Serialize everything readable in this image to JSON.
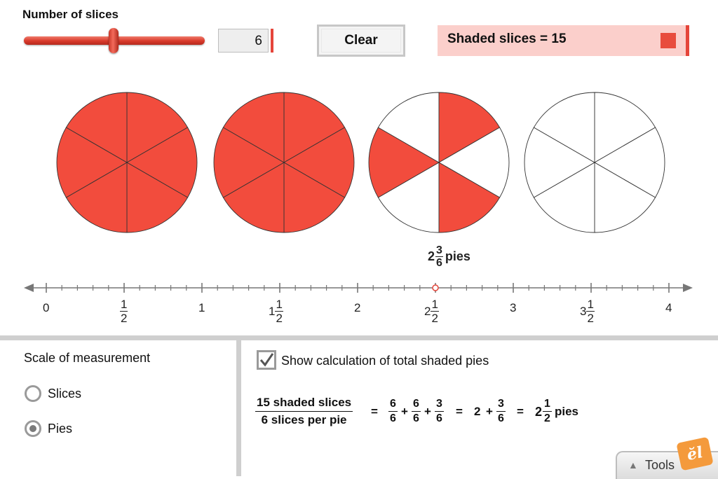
{
  "slider": {
    "label": "Number of slices",
    "value": "6",
    "min": 1,
    "max": 12,
    "current": 6
  },
  "clear_button": "Clear",
  "shaded_display": {
    "text": "Shaded slices = 15",
    "swatch_color": "#e84c3d"
  },
  "pies": {
    "slices_per_pie": 6,
    "shaded_slices": [
      [
        0,
        1,
        2,
        3,
        4,
        5
      ],
      [
        0,
        1,
        2,
        3,
        4,
        5
      ],
      [
        0,
        2,
        4
      ],
      []
    ],
    "fill_color": "#f24c3d",
    "label": {
      "whole": "2",
      "numerator": "3",
      "denominator": "6",
      "unit": "pies"
    }
  },
  "number_line": {
    "min": 0,
    "max": 4,
    "marker_value": 2.5,
    "labels": [
      {
        "kind": "int",
        "text": "0"
      },
      {
        "kind": "frac",
        "whole": "",
        "num": "1",
        "den": "2"
      },
      {
        "kind": "int",
        "text": "1"
      },
      {
        "kind": "frac",
        "whole": "1",
        "num": "1",
        "den": "2"
      },
      {
        "kind": "int",
        "text": "2"
      },
      {
        "kind": "frac",
        "whole": "2",
        "num": "1",
        "den": "2"
      },
      {
        "kind": "int",
        "text": "3"
      },
      {
        "kind": "frac",
        "whole": "3",
        "num": "1",
        "den": "2"
      },
      {
        "kind": "int",
        "text": "4"
      }
    ]
  },
  "scale": {
    "title": "Scale of measurement",
    "options": [
      {
        "label": "Slices",
        "checked": false
      },
      {
        "label": "Pies",
        "checked": true
      }
    ]
  },
  "calculation": {
    "checkbox_label": "Show calculation of total shaded pies",
    "checked": true,
    "numerator": "15 shaded slices",
    "denominator": "6 slices per pie",
    "equals": "=",
    "plus": "+",
    "terms": [
      {
        "num": "6",
        "den": "6"
      },
      {
        "num": "6",
        "den": "6"
      },
      {
        "num": "3",
        "den": "6"
      }
    ],
    "whole_part": "2",
    "remainder": {
      "num": "3",
      "den": "6"
    },
    "result": {
      "whole": "2",
      "num": "1",
      "den": "2",
      "unit": "pies"
    }
  },
  "tools": {
    "label": "Tools",
    "logo": "ĕl"
  }
}
